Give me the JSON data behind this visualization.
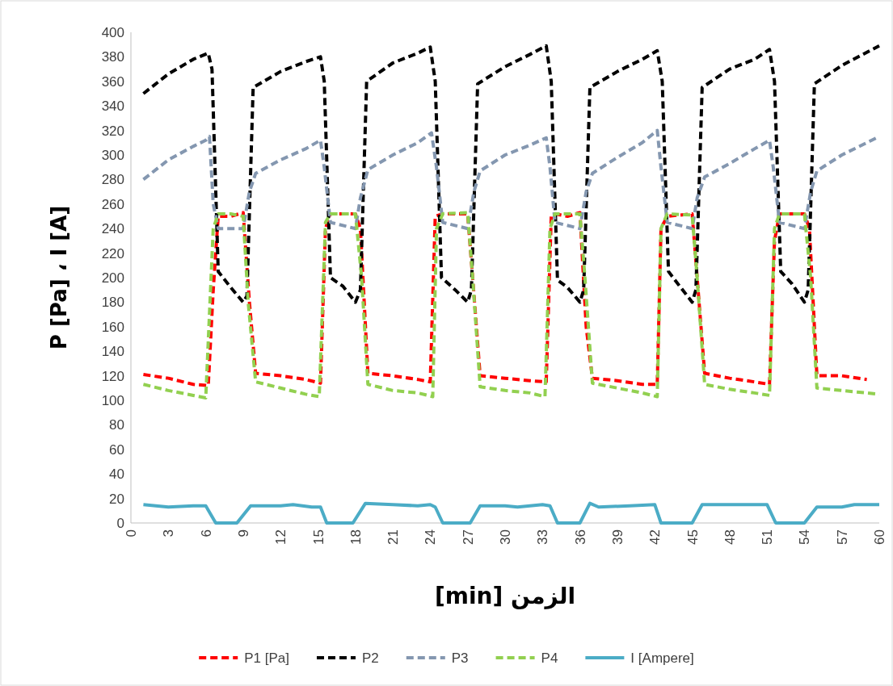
{
  "chart_data": {
    "type": "line",
    "xlabel": "الزمن [min]",
    "ylabel": "P [Pa] ، I [A]",
    "xlim": [
      0,
      60
    ],
    "xticks": [
      0,
      3,
      6,
      9,
      12,
      15,
      18,
      21,
      24,
      27,
      30,
      33,
      36,
      39,
      42,
      45,
      48,
      51,
      54,
      57,
      60
    ],
    "ylim": [
      0,
      400
    ],
    "yticks": [
      0,
      20,
      40,
      60,
      80,
      100,
      120,
      140,
      160,
      180,
      200,
      220,
      240,
      260,
      280,
      300,
      320,
      340,
      360,
      380,
      400
    ],
    "grid": false,
    "legend": "bottom",
    "series": [
      {
        "name": "P1 [Pa]",
        "color": "#ff0000",
        "line_style": "dashed",
        "x": [
          1,
          3,
          5,
          6.2,
          6.6,
          7,
          8,
          9,
          9.5,
          10,
          12,
          14,
          15.2,
          15.6,
          16,
          18,
          18.4,
          19,
          21,
          23,
          24,
          24.4,
          25,
          27,
          27.4,
          28,
          30,
          32,
          33.3,
          33.7,
          34,
          35,
          36,
          36.5,
          37,
          39,
          41,
          42.2,
          42.5,
          43,
          45,
          45.4,
          46,
          48,
          50,
          51.2,
          51.6,
          52,
          54,
          54.4,
          55,
          57,
          59
        ],
        "values": [
          121,
          118,
          113,
          112,
          190,
          250,
          250,
          253,
          180,
          122,
          120,
          117,
          114,
          240,
          252,
          252,
          240,
          122,
          120,
          117,
          115,
          250,
          252,
          252,
          200,
          120,
          118,
          116,
          115,
          250,
          252,
          250,
          253,
          160,
          118,
          116,
          113,
          113,
          240,
          250,
          252,
          200,
          122,
          118,
          115,
          113,
          230,
          252,
          252,
          240,
          120,
          120,
          117
        ]
      },
      {
        "name": "P2",
        "color": "#000000",
        "line_style": "dashed",
        "x": [
          1,
          3,
          5,
          6.2,
          6.5,
          7,
          8,
          9,
          9.3,
          9.8,
          12,
          14,
          15.2,
          15.5,
          16,
          17,
          18,
          18.4,
          18.9,
          21,
          23,
          24,
          24.4,
          24.9,
          26,
          27,
          27.3,
          27.8,
          30,
          32,
          33.3,
          33.7,
          34.2,
          35,
          36,
          36.3,
          36.8,
          39,
          41,
          42.2,
          42.6,
          43.1,
          44,
          45,
          45.3,
          45.8,
          48,
          50,
          51.2,
          51.6,
          52.1,
          53,
          54,
          54.3,
          54.8,
          57,
          60
        ],
        "values": [
          350,
          366,
          378,
          383,
          370,
          205,
          192,
          180,
          185,
          355,
          368,
          376,
          380,
          360,
          200,
          193,
          180,
          190,
          360,
          375,
          383,
          388,
          360,
          200,
          190,
          180,
          190,
          358,
          372,
          382,
          389,
          360,
          198,
          192,
          180,
          190,
          355,
          368,
          378,
          385,
          360,
          205,
          193,
          180,
          190,
          355,
          370,
          378,
          386,
          360,
          205,
          195,
          180,
          190,
          358,
          373,
          389
        ]
      },
      {
        "name": "P3",
        "color": "#8497b0",
        "line_style": "dashed",
        "x": [
          1,
          3,
          5,
          6,
          6.3,
          6.6,
          7,
          9,
          9.5,
          10,
          12,
          14,
          15.2,
          15.5,
          16,
          18,
          18.4,
          19,
          21,
          23,
          24.1,
          24.5,
          25,
          27,
          27.5,
          28,
          30,
          32,
          33.3,
          33.6,
          34,
          36,
          36.5,
          37,
          39,
          41,
          42.2,
          42.5,
          43,
          45,
          45.4,
          46,
          48,
          50,
          51.2,
          51.5,
          52,
          54,
          54.5,
          55,
          57,
          60
        ],
        "values": [
          280,
          296,
          307,
          312,
          315,
          260,
          240,
          240,
          270,
          285,
          296,
          305,
          312,
          290,
          245,
          240,
          265,
          288,
          300,
          310,
          318,
          290,
          245,
          240,
          270,
          287,
          300,
          308,
          314,
          290,
          245,
          240,
          270,
          285,
          298,
          310,
          320,
          290,
          245,
          240,
          265,
          282,
          293,
          305,
          312,
          290,
          245,
          240,
          270,
          287,
          300,
          315
        ]
      },
      {
        "name": "P4",
        "color": "#92d050",
        "line_style": "dashed",
        "x": [
          1,
          3,
          5,
          6,
          6.6,
          7,
          8,
          9,
          9.4,
          10,
          12,
          14,
          15.1,
          15.6,
          16,
          18,
          18.5,
          19,
          21,
          23,
          24.2,
          24.5,
          25,
          27,
          27.4,
          28,
          30,
          32,
          33.2,
          33.6,
          34,
          36,
          36.4,
          37,
          39,
          41,
          42.2,
          42.5,
          43,
          45,
          45.4,
          46,
          48,
          50,
          51.2,
          51.6,
          52,
          54,
          54.5,
          55,
          57,
          60
        ],
        "values": [
          113,
          108,
          104,
          102,
          240,
          252,
          252,
          250,
          180,
          115,
          110,
          105,
          103,
          245,
          252,
          252,
          200,
          113,
          108,
          106,
          103,
          240,
          252,
          253,
          200,
          111,
          108,
          106,
          103,
          240,
          252,
          252,
          200,
          114,
          110,
          106,
          103,
          240,
          252,
          251,
          200,
          113,
          109,
          106,
          104,
          240,
          252,
          252,
          200,
          110,
          108,
          105
        ]
      },
      {
        "name": "I [Ampere]",
        "color": "#4bacc6",
        "line_style": "solid",
        "x": [
          1,
          3,
          5,
          6,
          6.8,
          8.5,
          9.6,
          12,
          13,
          14.5,
          15.2,
          15.7,
          17.8,
          18.8,
          21,
          23,
          24,
          24.4,
          25,
          27.2,
          28,
          30,
          31,
          33,
          33.6,
          34.2,
          36,
          36.8,
          37.5,
          40,
          42,
          42.5,
          45,
          45.8,
          48,
          50,
          51,
          51.7,
          54,
          55,
          57,
          58,
          60
        ],
        "values": [
          15,
          13,
          14,
          14,
          0,
          0,
          14,
          14,
          15,
          13,
          13,
          0,
          0,
          16,
          15,
          14,
          15,
          13,
          0,
          0,
          14,
          14,
          13,
          15,
          14,
          0,
          0,
          16,
          13,
          14,
          15,
          0,
          0,
          15,
          15,
          15,
          15,
          0,
          0,
          13,
          13,
          15,
          15
        ]
      }
    ]
  }
}
